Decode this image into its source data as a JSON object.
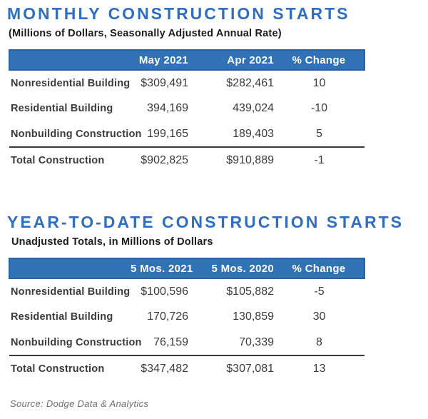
{
  "tables": [
    {
      "title": "MONTHLY CONSTRUCTION STARTS",
      "subtitle": "(Millions of Dollars, Seasonally Adjusted Annual Rate)",
      "columns": {
        "period1": "May 2021",
        "period2": "Apr 2021",
        "change": "% Change"
      },
      "rows": [
        {
          "label": "Nonresidential Building",
          "v1": "$309,491",
          "v2": "$282,461",
          "change": "10"
        },
        {
          "label": "Residential Building",
          "v1": "394,169",
          "v2": "439,024",
          "change": "-10"
        },
        {
          "label": "Nonbuilding Construction",
          "v1": "199,165",
          "v2": "189,403",
          "change": "5"
        },
        {
          "label": "Total Construction",
          "v1": "$902,825",
          "v2": "$910,889",
          "change": "-1"
        }
      ]
    },
    {
      "title": "YEAR-TO-DATE CONSTRUCTION STARTS",
      "subtitle": "Unadjusted Totals, in Millions of Dollars",
      "columns": {
        "period1": "5 Mos. 2021",
        "period2": "5 Mos. 2020",
        "change": "% Change"
      },
      "rows": [
        {
          "label": "Nonresidential Building",
          "v1": "$100,596",
          "v2": "$105,882",
          "change": "-5"
        },
        {
          "label": "Residential Building",
          "v1": "170,726",
          "v2": "130,859",
          "change": "30"
        },
        {
          "label": "Nonbuilding Construction",
          "v1": "76,159",
          "v2": "70,339",
          "change": "8"
        },
        {
          "label": "Total Construction",
          "v1": "$347,482",
          "v2": "$307,081",
          "change": "13"
        }
      ]
    }
  ],
  "source": "Source: Dodge Data & Analytics",
  "colors": {
    "title_blue": "#2e6fc1",
    "header_bar_blue": "#3171b6",
    "header_bar_border": "#2763a6",
    "text_dark": "#3b3b3b",
    "total_divider": "#3a3a3a",
    "source_gray": "#6e6e6e"
  },
  "chart_data": [
    {
      "type": "table",
      "title": "MONTHLY CONSTRUCTION STARTS",
      "subtitle": "(Millions of Dollars, Seasonally Adjusted Annual Rate)",
      "columns": [
        "",
        "May 2021",
        "Apr 2021",
        "% Change"
      ],
      "rows": [
        [
          "Nonresidential Building",
          309491,
          282461,
          10
        ],
        [
          "Residential Building",
          394169,
          439024,
          -10
        ],
        [
          "Nonbuilding Construction",
          199165,
          189403,
          5
        ],
        [
          "Total Construction",
          902825,
          910889,
          -1
        ]
      ]
    },
    {
      "type": "table",
      "title": "YEAR-TO-DATE CONSTRUCTION STARTS",
      "subtitle": "Unadjusted Totals, in Millions of Dollars",
      "columns": [
        "",
        "5 Mos. 2021",
        "5 Mos. 2020",
        "% Change"
      ],
      "rows": [
        [
          "Nonresidential Building",
          100596,
          105882,
          -5
        ],
        [
          "Residential Building",
          170726,
          130859,
          30
        ],
        [
          "Nonbuilding Construction",
          76159,
          70339,
          8
        ],
        [
          "Total Construction",
          347482,
          307081,
          13
        ]
      ]
    }
  ]
}
